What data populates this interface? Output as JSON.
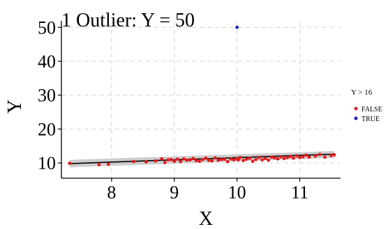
{
  "chart_data": {
    "type": "scatter",
    "title": "1 Outlier: Y = 50",
    "xlabel": "X",
    "ylabel": "Y",
    "xlim": [
      7.2,
      11.65
    ],
    "ylim": [
      5.5,
      51.5
    ],
    "xticks": [
      8,
      9,
      10,
      11
    ],
    "yticks": [
      10,
      20,
      30,
      40,
      50
    ],
    "grid": true,
    "legend": {
      "title": "Y > 16",
      "position": "right",
      "entries": [
        {
          "label": "FALSE",
          "color": "#e31a1c"
        },
        {
          "label": "TRUE",
          "color": "#1f1fc8"
        }
      ]
    },
    "series": [
      {
        "name": "FALSE",
        "color": "#e31a1c",
        "points": [
          [
            7.33,
            9.9
          ],
          [
            7.8,
            9.5
          ],
          [
            7.95,
            9.6
          ],
          [
            8.35,
            10.4
          ],
          [
            8.55,
            10.3
          ],
          [
            8.7,
            10.6
          ],
          [
            8.8,
            11.2
          ],
          [
            8.85,
            10.1
          ],
          [
            8.9,
            10.9
          ],
          [
            8.95,
            11.0
          ],
          [
            9.0,
            10.5
          ],
          [
            9.05,
            11.1
          ],
          [
            9.1,
            10.4
          ],
          [
            9.15,
            11.2
          ],
          [
            9.2,
            10.8
          ],
          [
            9.25,
            10.9
          ],
          [
            9.3,
            11.3
          ],
          [
            9.35,
            10.7
          ],
          [
            9.4,
            10.5
          ],
          [
            9.45,
            11.0
          ],
          [
            9.5,
            11.4
          ],
          [
            9.55,
            10.8
          ],
          [
            9.6,
            10.6
          ],
          [
            9.65,
            11.5
          ],
          [
            9.7,
            10.8
          ],
          [
            9.75,
            11.0
          ],
          [
            9.8,
            11.1
          ],
          [
            9.85,
            10.4
          ],
          [
            9.9,
            11.2
          ],
          [
            9.95,
            10.9
          ],
          [
            10.0,
            11.3
          ],
          [
            10.02,
            10.9
          ],
          [
            10.05,
            11.6
          ],
          [
            10.1,
            10.7
          ],
          [
            10.15,
            11.1
          ],
          [
            10.2,
            11.4
          ],
          [
            10.25,
            10.5
          ],
          [
            10.3,
            11.0
          ],
          [
            10.35,
            11.6
          ],
          [
            10.4,
            10.9
          ],
          [
            10.45,
            11.3
          ],
          [
            10.5,
            10.8
          ],
          [
            10.55,
            11.7
          ],
          [
            10.6,
            11.5
          ],
          [
            10.65,
            11.2
          ],
          [
            10.7,
            11.8
          ],
          [
            10.75,
            11.3
          ],
          [
            10.8,
            11.6
          ],
          [
            10.85,
            11.9
          ],
          [
            10.9,
            11.4
          ],
          [
            10.95,
            12.1
          ],
          [
            11.0,
            11.6
          ],
          [
            11.05,
            11.8
          ],
          [
            11.1,
            12.3
          ],
          [
            11.15,
            11.7
          ],
          [
            11.25,
            12.0
          ],
          [
            11.32,
            12.5
          ],
          [
            11.4,
            11.7
          ],
          [
            11.5,
            12.2
          ],
          [
            11.55,
            12.4
          ]
        ]
      },
      {
        "name": "TRUE",
        "color": "#1f1fc8",
        "points": [
          [
            10.0,
            50
          ]
        ]
      }
    ],
    "fit": {
      "type": "linear",
      "x_range": [
        7.33,
        11.55
      ],
      "y_range": [
        9.8,
        12.6
      ],
      "ci_band": {
        "low": [
          8.7,
          11.5
        ],
        "high": [
          10.9,
          13.5
        ]
      },
      "color": "#000000",
      "band_color": "#c8c8c8"
    }
  }
}
